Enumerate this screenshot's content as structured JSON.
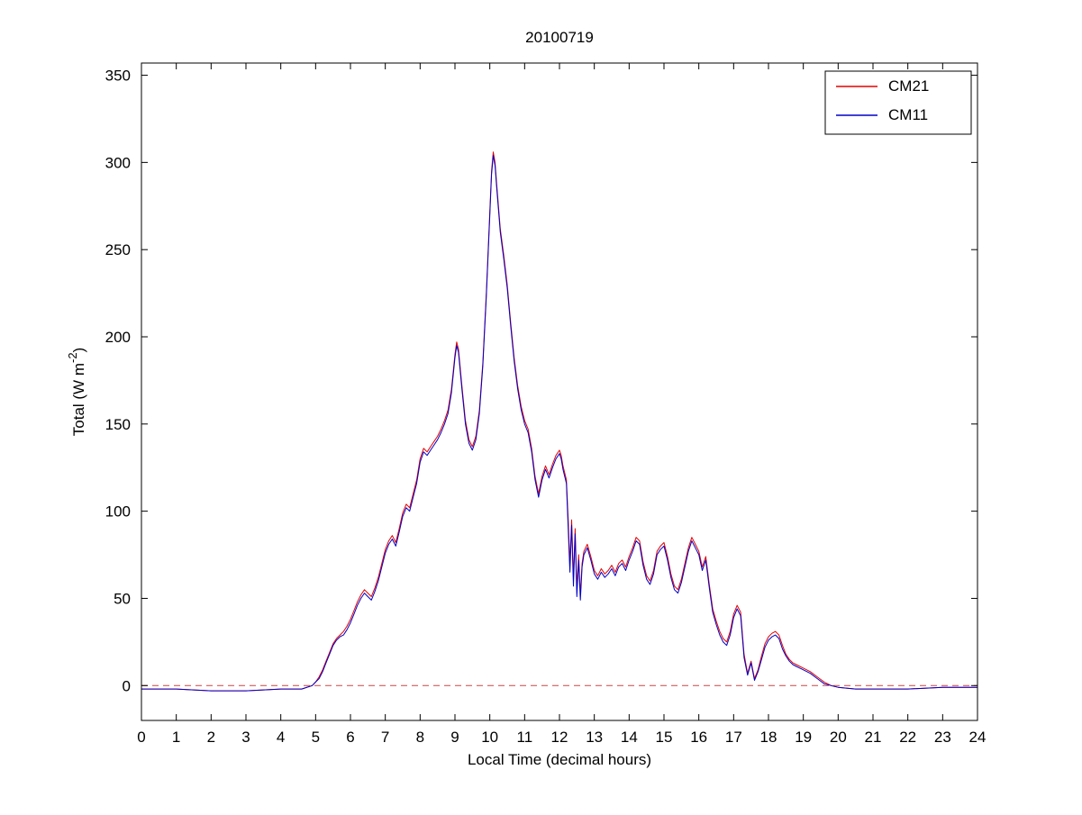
{
  "page": {
    "background": "#ffffff"
  },
  "chart_data": {
    "type": "line",
    "title": "20100719",
    "xlabel": "Local Time (decimal hours)",
    "ylabel": "Total (W m⁻²)",
    "ylabel_parts": {
      "prefix": "Total (W m",
      "superscript": "-2",
      "suffix": ")"
    },
    "xlim": [
      0,
      24
    ],
    "ylim": [
      -20,
      357
    ],
    "xticks": [
      0,
      1,
      2,
      3,
      4,
      5,
      6,
      7,
      8,
      9,
      10,
      11,
      12,
      13,
      14,
      15,
      16,
      17,
      18,
      19,
      20,
      21,
      22,
      23,
      24
    ],
    "yticks": [
      0,
      50,
      100,
      150,
      200,
      250,
      300,
      350
    ],
    "grid": false,
    "legend_position": "upper-right",
    "axis_color": "#000000",
    "tick_label_color": "#000000",
    "zero_line": {
      "y": 0,
      "color": "#cc4444",
      "style": "dashed"
    },
    "x": [
      0,
      1,
      2,
      3,
      4,
      4.6,
      4.9,
      5.0,
      5.1,
      5.2,
      5.3,
      5.4,
      5.5,
      5.6,
      5.7,
      5.8,
      5.9,
      6.0,
      6.1,
      6.2,
      6.3,
      6.4,
      6.5,
      6.6,
      6.7,
      6.8,
      6.9,
      7.0,
      7.1,
      7.2,
      7.3,
      7.4,
      7.5,
      7.6,
      7.7,
      7.8,
      7.9,
      8.0,
      8.1,
      8.2,
      8.3,
      8.4,
      8.5,
      8.6,
      8.7,
      8.8,
      8.9,
      9.0,
      9.05,
      9.1,
      9.2,
      9.3,
      9.4,
      9.5,
      9.6,
      9.7,
      9.8,
      9.9,
      10.0,
      10.05,
      10.1,
      10.15,
      10.2,
      10.3,
      10.4,
      10.5,
      10.6,
      10.7,
      10.8,
      10.9,
      11.0,
      11.1,
      11.2,
      11.3,
      11.4,
      11.5,
      11.6,
      11.7,
      11.8,
      11.9,
      12.0,
      12.05,
      12.1,
      12.2,
      12.25,
      12.3,
      12.35,
      12.4,
      12.45,
      12.5,
      12.55,
      12.6,
      12.65,
      12.7,
      12.8,
      12.9,
      13.0,
      13.1,
      13.2,
      13.3,
      13.4,
      13.5,
      13.6,
      13.7,
      13.8,
      13.9,
      14.0,
      14.1,
      14.2,
      14.3,
      14.4,
      14.5,
      14.6,
      14.7,
      14.8,
      14.9,
      15.0,
      15.1,
      15.2,
      15.3,
      15.4,
      15.5,
      15.6,
      15.7,
      15.8,
      15.9,
      16.0,
      16.1,
      16.2,
      16.3,
      16.4,
      16.5,
      16.6,
      16.7,
      16.8,
      16.9,
      17.0,
      17.1,
      17.2,
      17.3,
      17.4,
      17.5,
      17.6,
      17.7,
      17.8,
      17.9,
      18.0,
      18.1,
      18.2,
      18.3,
      18.4,
      18.5,
      18.6,
      18.7,
      18.8,
      18.9,
      19.0,
      19.2,
      19.4,
      19.6,
      19.8,
      20.0,
      20.5,
      21.0,
      22.0,
      23.0,
      24.0
    ],
    "series": [
      {
        "name": "CM21",
        "color": "#e60000",
        "values": [
          -2,
          -2,
          -3,
          -3,
          -2,
          -2,
          0,
          2,
          5,
          9,
          14,
          19,
          24,
          27,
          29,
          31,
          34,
          38,
          43,
          48,
          52,
          55,
          53,
          51,
          56,
          62,
          70,
          78,
          83,
          86,
          82,
          90,
          99,
          104,
          102,
          110,
          118,
          130,
          136,
          134,
          137,
          140,
          143,
          147,
          152,
          158,
          170,
          190,
          197,
          193,
          172,
          152,
          141,
          137,
          143,
          158,
          185,
          225,
          272,
          295,
          306,
          300,
          287,
          262,
          247,
          230,
          208,
          188,
          172,
          160,
          152,
          147,
          136,
          120,
          110,
          120,
          126,
          121,
          127,
          132,
          135,
          132,
          126,
          118,
          95,
          70,
          95,
          62,
          90,
          55,
          75,
          52,
          70,
          77,
          81,
          74,
          66,
          63,
          67,
          64,
          66,
          69,
          65,
          70,
          72,
          68,
          74,
          79,
          85,
          83,
          71,
          63,
          60,
          66,
          77,
          80,
          82,
          74,
          64,
          57,
          55,
          61,
          70,
          79,
          85,
          81,
          77,
          68,
          74,
          58,
          44,
          37,
          31,
          27,
          25,
          31,
          41,
          46,
          42,
          18,
          7,
          14,
          4,
          9,
          17,
          24,
          28,
          30,
          31,
          29,
          23,
          18,
          15,
          13,
          12,
          11,
          10,
          8,
          5,
          2,
          0,
          -1,
          -2,
          -2,
          -2,
          -1,
          -1
        ]
      },
      {
        "name": "CM11",
        "color": "#0000c8",
        "values": [
          -2,
          -2,
          -3,
          -3,
          -2,
          -2,
          0,
          2,
          4,
          8,
          13,
          18,
          23,
          26,
          28,
          29,
          32,
          36,
          41,
          46,
          50,
          53,
          51,
          49,
          54,
          60,
          68,
          76,
          81,
          84,
          80,
          88,
          97,
          102,
          100,
          108,
          116,
          128,
          134,
          132,
          135,
          138,
          141,
          145,
          150,
          156,
          168,
          188,
          195,
          191,
          170,
          150,
          139,
          135,
          141,
          156,
          183,
          223,
          270,
          293,
          304,
          298,
          285,
          260,
          245,
          228,
          206,
          186,
          170,
          158,
          150,
          145,
          134,
          118,
          108,
          118,
          124,
          119,
          125,
          130,
          133,
          130,
          124,
          116,
          90,
          65,
          92,
          57,
          87,
          51,
          72,
          49,
          68,
          75,
          79,
          72,
          64,
          61,
          65,
          62,
          64,
          67,
          63,
          68,
          70,
          66,
          72,
          77,
          83,
          81,
          69,
          61,
          58,
          64,
          75,
          78,
          80,
          72,
          62,
          55,
          53,
          59,
          68,
          77,
          83,
          79,
          75,
          66,
          72,
          56,
          42,
          35,
          29,
          25,
          23,
          29,
          39,
          44,
          40,
          16,
          6,
          13,
          3,
          8,
          15,
          22,
          26,
          28,
          29,
          27,
          21,
          17,
          14,
          12,
          11,
          10,
          9,
          7,
          4,
          1,
          0,
          -1,
          -2,
          -2,
          -2,
          -1,
          -1
        ]
      }
    ]
  }
}
